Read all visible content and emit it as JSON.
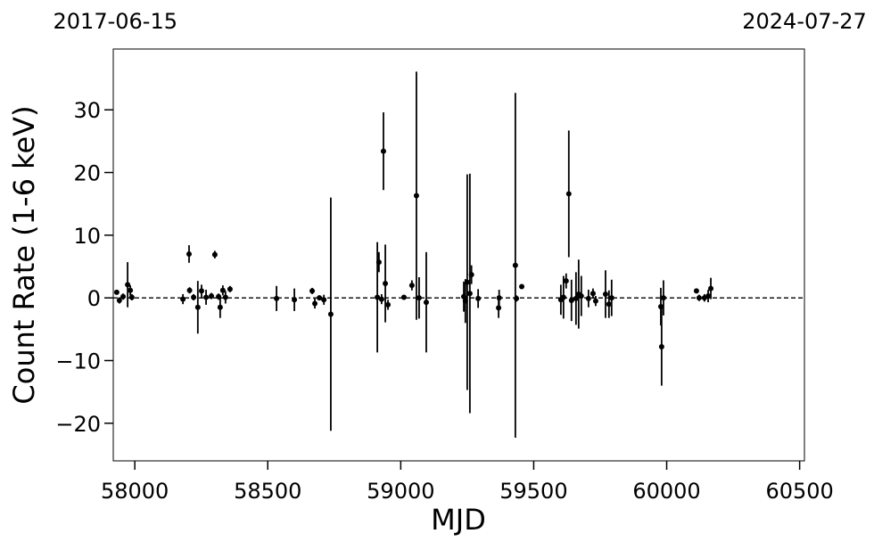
{
  "chart_data": {
    "type": "errorbar",
    "xlabel": "MJD",
    "ylabel": "Count Rate (1-6 keV)",
    "xlim": [
      57919,
      60518
    ],
    "ylim": [
      -26,
      39.7
    ],
    "xticks": [
      58000,
      58500,
      59000,
      59500,
      60000,
      60500
    ],
    "yticks": [
      {
        "value": -20,
        "label": "−20"
      },
      {
        "value": -10,
        "label": "−10"
      },
      0,
      10,
      20,
      30
    ],
    "x2ticks": [
      {
        "value": 57919,
        "label": "2017-06-15"
      },
      {
        "value": 60518,
        "label": "2024-07-27"
      }
    ],
    "reference_line": 0,
    "color": "#000000",
    "x": [
      57932,
      57942,
      57956,
      57973,
      57983,
      57989,
      58181,
      58204,
      58206,
      58221,
      58237,
      58251,
      58268,
      58288,
      58301,
      58315,
      58321,
      58331,
      58341,
      58358,
      58533,
      58600,
      58667,
      58677,
      58694,
      58711,
      58737,
      58912,
      58918,
      58928,
      58935,
      58942,
      58952,
      59012,
      59042,
      59059,
      59069,
      59096,
      59237,
      59243,
      59250,
      59260,
      59266,
      59291,
      59368,
      59370,
      59431,
      59435,
      59455,
      59602,
      59612,
      59622,
      59632,
      59642,
      59659,
      59669,
      59679,
      59706,
      59723,
      59733,
      59770,
      59783,
      59793,
      59978,
      59981,
      59988,
      60112,
      60122,
      60142,
      60156,
      60166
    ],
    "values": [
      0.9,
      -0.4,
      0.2,
      2.1,
      1.2,
      0.1,
      -0.2,
      7.0,
      1.2,
      0.1,
      -1.5,
      1.1,
      0.1,
      0.3,
      6.9,
      0.2,
      -1.5,
      1.2,
      0.1,
      1.4,
      -0.1,
      -0.3,
      1.1,
      -0.9,
      0.0,
      -0.3,
      -2.6,
      0.1,
      5.7,
      -0.2,
      23.4,
      2.3,
      -1.1,
      0.1,
      2.0,
      16.3,
      0.0,
      -0.7,
      0.2,
      -0.5,
      2.5,
      0.7,
      3.7,
      -0.1,
      -1.6,
      0.0,
      5.2,
      -0.1,
      1.8,
      -0.3,
      0.1,
      2.7,
      16.6,
      -0.4,
      -0.1,
      0.6,
      0.3,
      -0.1,
      0.7,
      -0.5,
      0.6,
      -1.0,
      0.0,
      -1.4,
      -7.8,
      0.0,
      1.1,
      0.0,
      0.0,
      0.3,
      1.5
    ],
    "errors": [
      0.3,
      0.5,
      0.5,
      3.6,
      0.8,
      0.5,
      0.8,
      1.4,
      0.5,
      0.5,
      4.2,
      1.0,
      1.2,
      0.5,
      0.6,
      0.5,
      1.7,
      0.8,
      1.0,
      0.5,
      2.0,
      1.8,
      0.5,
      0.8,
      0.4,
      0.8,
      18.6,
      8.8,
      1.6,
      0.8,
      6.2,
      6.2,
      0.8,
      0.3,
      0.8,
      19.8,
      3.3,
      8.0,
      2.4,
      3.5,
      17.2,
      19.1,
      1.5,
      1.5,
      1.6,
      1.3,
      27.5,
      0.5,
      0.3,
      2.4,
      3.4,
      1.2,
      10.1,
      3.3,
      4.2,
      5.5,
      3.2,
      1.4,
      0.8,
      0.8,
      3.8,
      2.2,
      2.9,
      3.0,
      6.2,
      2.8,
      0.3,
      0.5,
      0.6,
      1.0,
      1.7
    ]
  }
}
